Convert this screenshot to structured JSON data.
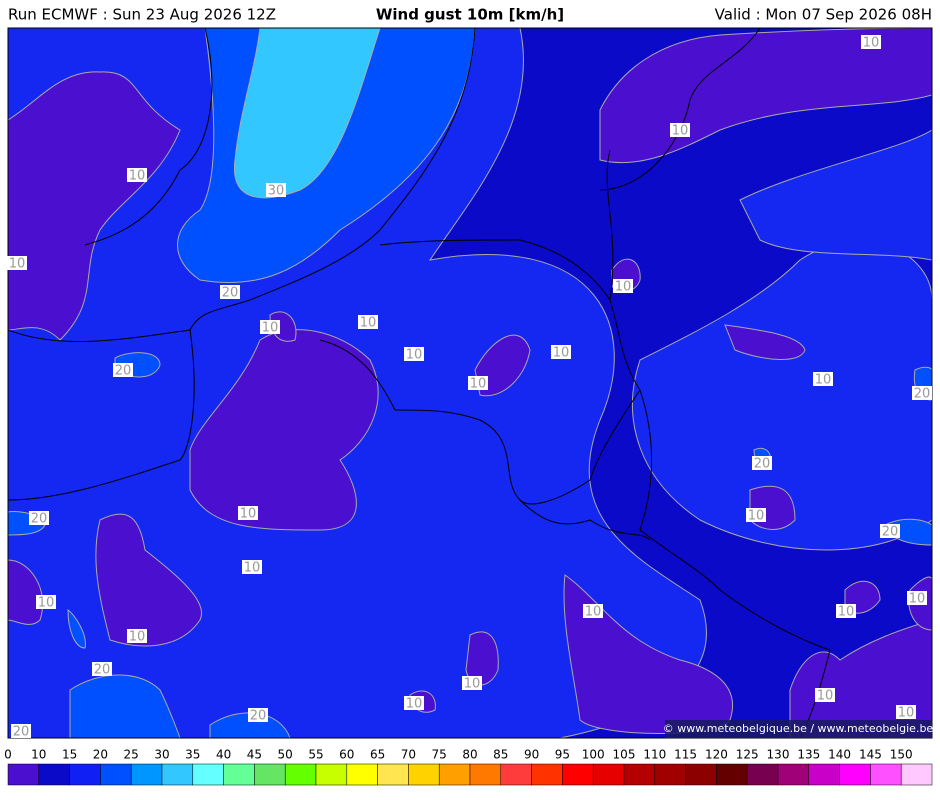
{
  "header": {
    "run": "Run ECMWF : Sun 23 Aug 2026 12Z",
    "title": "Wind gust 10m [km/h]",
    "valid": "Valid : Mon 07 Sep 2026 08H"
  },
  "map": {
    "contour_labels": [
      "10",
      "10",
      "10",
      "10",
      "30",
      "20",
      "10",
      "10",
      "10",
      "10",
      "10",
      "10",
      "20",
      "10",
      "20",
      "20",
      "10",
      "10",
      "20",
      "20",
      "10",
      "10",
      "10",
      "10",
      "10",
      "10",
      "20",
      "10",
      "10",
      "10",
      "20",
      "10",
      "20"
    ],
    "copyright": "© www.meteobelgique.be / www.meteobelgie.be"
  },
  "legend": {
    "ticks": [
      0,
      10,
      15,
      20,
      25,
      30,
      35,
      40,
      45,
      50,
      55,
      60,
      65,
      70,
      75,
      80,
      85,
      90,
      95,
      100,
      105,
      110,
      115,
      120,
      125,
      130,
      135,
      140,
      145,
      150
    ],
    "colors": [
      "#4b0fd0",
      "#0a0ac8",
      "#1020f5",
      "#0050ff",
      "#0096ff",
      "#32c8ff",
      "#64ffff",
      "#64ff96",
      "#64e664",
      "#64ff00",
      "#c8ff00",
      "#ffff00",
      "#ffe650",
      "#ffd200",
      "#ffa000",
      "#ff7800",
      "#ff3c3c",
      "#ff3200",
      "#ff0000",
      "#e60000",
      "#b40000",
      "#a00000",
      "#8c0000",
      "#640000",
      "#780050",
      "#a00078",
      "#c800c8",
      "#ff00ff",
      "#ff50ff",
      "#ffc8ff"
    ]
  }
}
